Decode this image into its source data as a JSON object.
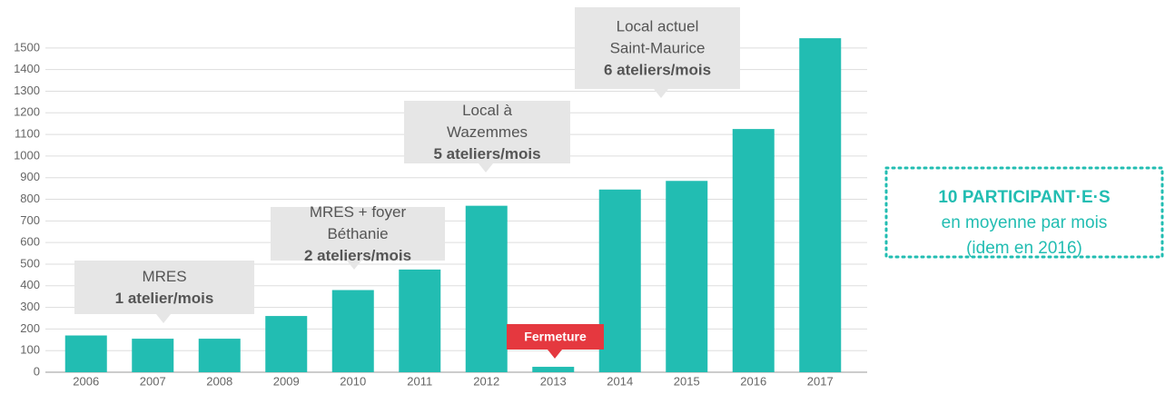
{
  "chart_data": {
    "type": "bar",
    "categories": [
      "2006",
      "2007",
      "2008",
      "2009",
      "2010",
      "2011",
      "2012",
      "2013",
      "2014",
      "2015",
      "2016",
      "2017"
    ],
    "values": [
      170,
      155,
      155,
      260,
      380,
      475,
      770,
      25,
      845,
      885,
      1125,
      1545
    ],
    "color": "#22bdb2",
    "ylim": [
      0,
      1600
    ],
    "yticks": [
      0,
      100,
      200,
      300,
      400,
      500,
      600,
      700,
      800,
      900,
      1000,
      1100,
      1200,
      1300,
      1400,
      1500
    ],
    "grid": true,
    "annotations": [
      {
        "lines": [
          "MRES",
          "1 atelier/mois"
        ],
        "color": "#e6e6e6"
      },
      {
        "lines": [
          "MRES + foyer",
          "Béthanie",
          "2 ateliers/mois"
        ],
        "color": "#e6e6e6"
      },
      {
        "lines": [
          "Local à",
          "Wazemmes",
          "5 ateliers/mois"
        ],
        "color": "#e6e6e6"
      },
      {
        "lines": [
          "Local actuel",
          "Saint-Maurice",
          "6 ateliers/mois"
        ],
        "color": "#e6e6e6"
      },
      {
        "lines": [
          "Fermeture"
        ],
        "color": "#e5383f"
      }
    ]
  },
  "note": {
    "lines": [
      "10 PARTICIPANT·E·S",
      "en moyenne par mois",
      "(idem en 2016)"
    ],
    "color": "#22bdb2"
  }
}
